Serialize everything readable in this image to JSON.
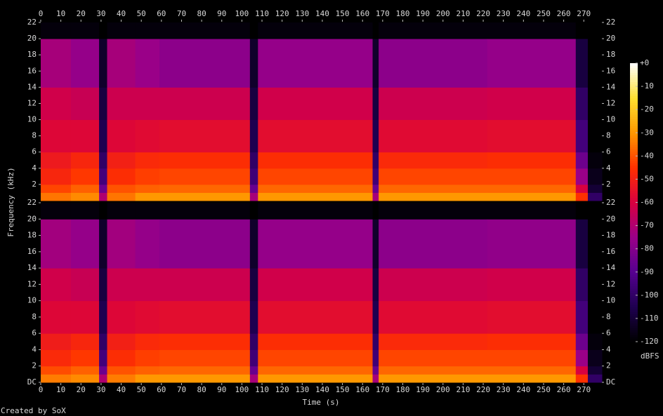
{
  "chart_data": {
    "type": "spectrogram",
    "x_label": "Time (s)",
    "y_label": "Frequency (kHz)",
    "colorbar_label": "dBFS",
    "footer": "Created by SoX",
    "xlim": [
      0,
      279
    ],
    "xticks": [
      0,
      10,
      20,
      30,
      40,
      50,
      60,
      70,
      80,
      90,
      100,
      110,
      120,
      130,
      140,
      150,
      160,
      170,
      180,
      190,
      200,
      210,
      220,
      230,
      240,
      250,
      260,
      270
    ],
    "ylim": [
      0,
      22
    ],
    "zlim": [
      -120,
      0
    ],
    "zticks": [
      {
        "value": 0,
        "label": "+0"
      },
      -10,
      -20,
      -30,
      -40,
      -50,
      -60,
      -70,
      -80,
      -90,
      -100,
      -110,
      -120
    ],
    "colormap": [
      "#000000",
      "#1e0050",
      "#560090",
      "#9a0088",
      "#d80040",
      "#ff3000",
      "#ff9800",
      "#ffe030",
      "#ffffff"
    ],
    "time_edges": [
      0,
      15,
      29,
      33,
      47,
      59,
      104,
      108,
      165,
      168,
      222,
      266,
      272,
      279
    ],
    "freq_edges": [
      0,
      1,
      2,
      4,
      6,
      10,
      14,
      20,
      22
    ],
    "panels": [
      {
        "yticks": [
          2,
          4,
          6,
          8,
          10,
          12,
          14,
          16,
          18,
          20,
          22
        ],
        "values": [
          [
            -35,
            -42,
            -48,
            -52,
            -58,
            -62,
            -72,
            -118
          ],
          [
            -32,
            -38,
            -44,
            -48,
            -58,
            -64,
            -76,
            -118
          ],
          [
            -70,
            -85,
            -95,
            -100,
            -105,
            -108,
            -112,
            -120
          ],
          [
            -35,
            -40,
            -46,
            -50,
            -58,
            -63,
            -72,
            -118
          ],
          [
            -30,
            -38,
            -43,
            -47,
            -57,
            -63,
            -75,
            -118
          ],
          [
            -30,
            -37,
            -42,
            -46,
            -56,
            -63,
            -78,
            -118
          ],
          [
            -72,
            -86,
            -96,
            -100,
            -105,
            -108,
            -112,
            -120
          ],
          [
            -30,
            -37,
            -42,
            -46,
            -56,
            -62,
            -76,
            -118
          ],
          [
            -72,
            -86,
            -96,
            -100,
            -105,
            -108,
            -112,
            -120
          ],
          [
            -30,
            -37,
            -42,
            -47,
            -57,
            -63,
            -78,
            -118
          ],
          [
            -30,
            -37,
            -42,
            -46,
            -56,
            -62,
            -76,
            -118
          ],
          [
            -45,
            -60,
            -75,
            -85,
            -95,
            -100,
            -108,
            -120
          ],
          [
            -100,
            -110,
            -115,
            -118,
            -120,
            -120,
            -120,
            -120
          ]
        ]
      },
      {
        "yticks": [
          {
            "value": 0,
            "label": "DC"
          },
          2,
          4,
          6,
          8,
          10,
          12,
          14,
          16,
          18,
          20,
          22
        ],
        "values": [
          [
            -34,
            -41,
            -47,
            -51,
            -58,
            -62,
            -73,
            -118
          ],
          [
            -32,
            -38,
            -44,
            -48,
            -58,
            -64,
            -76,
            -118
          ],
          [
            -70,
            -85,
            -95,
            -100,
            -105,
            -108,
            -112,
            -120
          ],
          [
            -34,
            -40,
            -46,
            -50,
            -58,
            -63,
            -73,
            -118
          ],
          [
            -30,
            -38,
            -43,
            -47,
            -57,
            -63,
            -76,
            -118
          ],
          [
            -30,
            -37,
            -42,
            -46,
            -56,
            -63,
            -78,
            -118
          ],
          [
            -72,
            -86,
            -96,
            -100,
            -105,
            -108,
            -112,
            -120
          ],
          [
            -30,
            -37,
            -42,
            -46,
            -56,
            -62,
            -76,
            -118
          ],
          [
            -72,
            -86,
            -96,
            -100,
            -105,
            -108,
            -112,
            -120
          ],
          [
            -30,
            -37,
            -42,
            -47,
            -57,
            -63,
            -78,
            -118
          ],
          [
            -30,
            -37,
            -42,
            -46,
            -56,
            -62,
            -77,
            -118
          ],
          [
            -45,
            -60,
            -75,
            -85,
            -95,
            -100,
            -108,
            -120
          ],
          [
            -100,
            -110,
            -115,
            -118,
            -120,
            -120,
            -120,
            -120
          ]
        ]
      }
    ]
  }
}
